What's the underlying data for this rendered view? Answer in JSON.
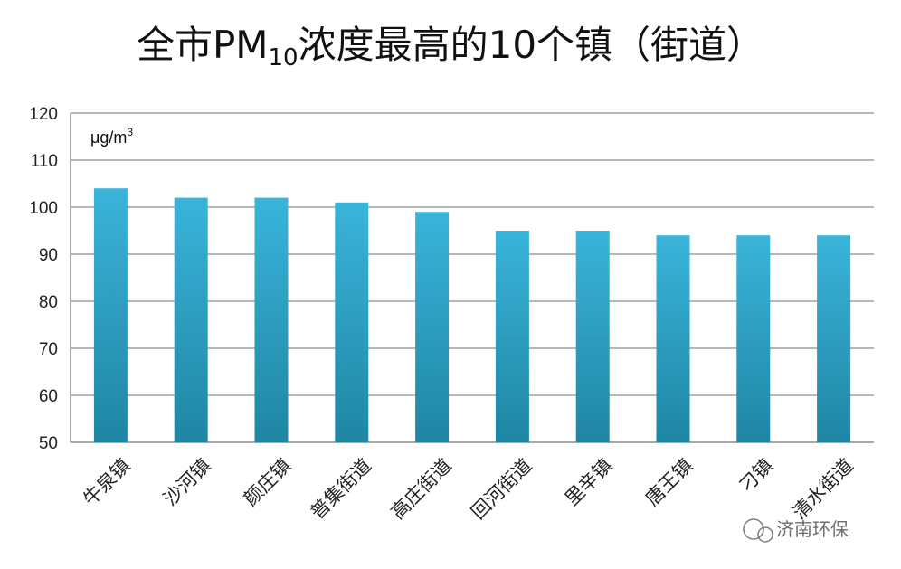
{
  "chart_data": {
    "type": "bar",
    "title": "全市PM₁₀浓度最高的10个镇（街道）",
    "title_parts": {
      "pre": "全市PM",
      "sub": "10",
      "post": "浓度最高的10个镇（街道）"
    },
    "unit_label": {
      "base": "μg/m",
      "sup": "3"
    },
    "categories": [
      "牛泉镇",
      "沙河镇",
      "颜庄镇",
      "普集街道",
      "高庄街道",
      "回河街道",
      "里辛镇",
      "唐王镇",
      "刁镇",
      "清水街道"
    ],
    "values": [
      104,
      102,
      102,
      101,
      99,
      95,
      95,
      94,
      94,
      94
    ],
    "ylim": [
      50,
      120
    ],
    "yticks": [
      50,
      60,
      70,
      80,
      90,
      100,
      110,
      120
    ],
    "grid": true,
    "legend": "none",
    "colors": {
      "bar_top": "#3ab4da",
      "bar_bottom": "#1f86a4",
      "grid": "#8c8c8c"
    }
  },
  "watermark": "济南环保"
}
